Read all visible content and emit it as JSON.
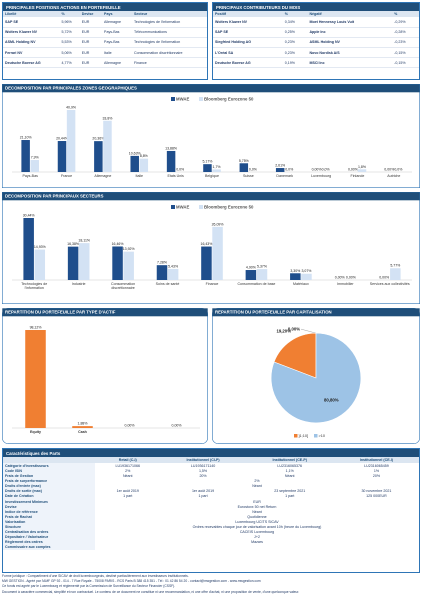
{
  "top_positions": {
    "title": "PRINCIPALES POSITIONS ACTIONS EN PORTEFEUILLE",
    "headers": [
      "Libellé",
      "%",
      "Devise",
      "Pays",
      "Secteur"
    ],
    "rows": [
      [
        "SAP SE",
        "5,96%",
        "EUR",
        "Allemagne",
        "Technologies de l'information"
      ],
      [
        "Wolters Kluwer NV",
        "5,72%",
        "EUR",
        "Pays-Bas",
        "Télécommunications"
      ],
      [
        "ASML Holding NV",
        "5,53%",
        "EUR",
        "Pays-Bas",
        "Technologies de l'information"
      ],
      [
        "Ferrari NV",
        "5,06%",
        "EUR",
        "Italie",
        "Consommation discrétionnaire"
      ],
      [
        "Deutsche Boerse AG",
        "4,77%",
        "EUR",
        "Allemagne",
        "Finance"
      ]
    ]
  },
  "contributors": {
    "title": "PRINCIPAUX CONTRIBUTEURS DU MOIS",
    "headers": [
      "Positif",
      "%",
      "Négatif",
      "%"
    ],
    "rows": [
      [
        "Wolters Kluwer NV",
        "0,34%",
        "Moet Hennessy Louis Vuit",
        "-0,29%"
      ],
      [
        "SAP SE",
        "0,25%",
        "Apple Inc",
        "-0,28%"
      ],
      [
        "Siegfried Holding AG",
        "0,23%",
        "ASML Holding NV",
        "-0,23%"
      ],
      [
        "L'Oréal SA",
        "0,23%",
        "Novo Nordisk A/S",
        "-0,15%"
      ],
      [
        "Deutsche Boerse AG",
        "0,19%",
        "MSCI Inc",
        "-0,15%"
      ]
    ]
  },
  "chart_data": [
    {
      "type": "bar",
      "title": "DECOMPOSITION PAR PRINCIPALES ZONES GEOGRAPHIQUES",
      "legend": "top",
      "categories": [
        "Pays-Bas",
        "France",
        "Allemagne",
        "Italie",
        "Etats Unis",
        "Belgique",
        "Suisse",
        "Danemark",
        "Luxembourg",
        "Finlande",
        "Autriche"
      ],
      "series": [
        {
          "name": "MWAE",
          "color": "#1f4e8c",
          "values": [
            21.1,
            20.44,
            20.36,
            10.63,
            13.88,
            5.17,
            5.75,
            2.61,
            0,
            0,
            0
          ],
          "value_labels": [
            "21,10%",
            "20,44%",
            "20,36%",
            "10,63%",
            "13,88%",
            "5,17%",
            "5,75%",
            "2,61%",
            "0,00%",
            "0,00%",
            "0,00%"
          ]
        },
        {
          "name": "Bloomberg Eurozone 50",
          "color": "#d3e2f4",
          "values": [
            7.9,
            40.9,
            33.8,
            8.8,
            0,
            1.7,
            0,
            0,
            0,
            1.8,
            0
          ],
          "value_labels": [
            "7,9%",
            "40,9%",
            "33,8%",
            "8,8%",
            "0,0%",
            "1,7%",
            "0,0%",
            "0,0%",
            "0,0%",
            "1,8%",
            "0,0%"
          ]
        }
      ]
    },
    {
      "type": "bar",
      "title": "DECOMPOSITION PAR PRINCIPAUX SECTEURS",
      "legend": "top",
      "categories": [
        "Technologies de l'information",
        "Industrie",
        "Consommation discrétionnaire",
        "Soins de santé",
        "Finance",
        "Consommation de base",
        "Matériaux",
        "Immobilier",
        "Services aux collectivités"
      ],
      "series": [
        {
          "name": "MWAE",
          "color": "#1f4e8c",
          "values": [
            30.44,
            16.38,
            16.46,
            7.28,
            16.43,
            4.9,
            3.3,
            0,
            0
          ],
          "value_labels": [
            "30,44%",
            "16,38%",
            "16,46%",
            "7,28%",
            "16,43%",
            "4,90%",
            "3,30%",
            "0,00%",
            "0,00%"
          ]
        },
        {
          "name": "Bloomberg Eurozone 50",
          "color": "#d3e2f4",
          "values": [
            14.93,
            18.11,
            13.92,
            5.43,
            26.09,
            5.37,
            3.07,
            0,
            5.77
          ],
          "value_labels": [
            "14,93%",
            "18,11%",
            "13,92%",
            "5,43%",
            "26,09%",
            "5,37%",
            "3,07%",
            "0,00%",
            "5,77%"
          ]
        }
      ]
    },
    {
      "type": "bar",
      "title": "REPARTITION DU PORTEFEUILLE PAR TYPE D'ACTIF",
      "categories": [
        "Equity",
        "Cash",
        null,
        null
      ],
      "color": "#f07f32",
      "values": [
        98.12,
        1.88,
        0,
        0
      ],
      "value_labels": [
        "98,12%",
        "1,88%",
        "0,00%",
        "0,00%"
      ]
    },
    {
      "type": "pie",
      "title": "REPARTITION DU PORTEFEUILLE PAR CAPITALISATION",
      "categories": [
        null,
        "]1;10]",
        ">10"
      ],
      "colors": [
        "#1f4e8c",
        "#f07f32",
        "#9dc3e6"
      ],
      "values": [
        0,
        19.2,
        80.8
      ],
      "value_labels": [
        "0,00%",
        "19,20%",
        "80,80%"
      ]
    }
  ],
  "characteristics": {
    "title": "Caractéristiques des Parts",
    "columns": [
      "Retail (C-I)",
      "Institutionnel (CI-P)",
      "Institutionnel (CE-P)",
      "Institutionnel (CE-I)"
    ],
    "rows": [
      {
        "label": "Catégorie d'investisseurs",
        "cells": [
          "LU1936171066",
          "LU1936171140",
          "LU2316065376",
          "LU2316065459"
        ]
      },
      {
        "label": "Code ISIN",
        "cells": [
          "2%",
          "1,5%",
          "1,1%",
          "1%"
        ]
      },
      {
        "label": "Frais de Gestion",
        "cells": [
          "Néant",
          "20%",
          "Néant",
          "20%"
        ]
      },
      {
        "label": "Frais de surperformance",
        "cells": [
          "2%"
        ]
      },
      {
        "label": "Droits d'entrée (max)",
        "cells": [
          "Néant"
        ]
      },
      {
        "label": "Droits de sortie (max)",
        "cells": [
          "1er août 2019",
          "1er août 2019",
          "23 septembre 2021",
          "30 novembre 2021"
        ]
      },
      {
        "label": "Date de Création",
        "cells": [
          "1 part",
          "1 part",
          "1 part",
          "125 000EUR"
        ]
      },
      {
        "label": "Investissement Minimum",
        "cells": [
          "EUR"
        ]
      },
      {
        "label": "Devise",
        "cells": [
          "Eurostoxx 50 net Return"
        ]
      },
      {
        "label": "Indice de référence",
        "cells": [
          "Néant"
        ]
      },
      {
        "label": "Frais de Rachat",
        "cells": [
          "Quotidienne"
        ]
      },
      {
        "label": "Valorisation",
        "cells": [
          "Luxembourg UCITS SICAV"
        ]
      },
      {
        "label": "Structure",
        "cells": [
          "Ordres recevables chaque jour de valorisation avant 10h (heure du Luxembourg)"
        ]
      },
      {
        "label": "Centralisation des ordres",
        "cells": [
          "CACEIS Luxembourg"
        ]
      },
      {
        "label": "Dépositaire / Valorisateur",
        "cells": [
          "J+2"
        ]
      },
      {
        "label": "Règlement des ordres",
        "cells": [
          "Mazars"
        ]
      },
      {
        "label": "Commissaire aux comptes",
        "cells": [
          ""
        ]
      }
    ]
  },
  "footer": [
    "Forme juridique : Compartiment d'une SICAV de droit luxembourgeois, destiné particulièrement aux investisseurs institutionnels.",
    "MW GESTION - Agréé par l'AMF GP 92 - 014 - 7 Rue Royale - 75008 PARIS - RCS Paris B 388 415 351 - Tél : 01 42 86 54 20 - contact@mwgestion.com - www.mwgestion.com",
    "Ce fonds est agréé par le Luxembourg et réglementé par la Commission de Surveillance du Secteur Financier (CSSF).",
    "Document à caractère commercial, simplifié et non contractuel. Le contenu de ce document ne constitue ni une recommandation, ni une offre d'achat, ni une proposition de vente, d'une quelconque valeur."
  ]
}
